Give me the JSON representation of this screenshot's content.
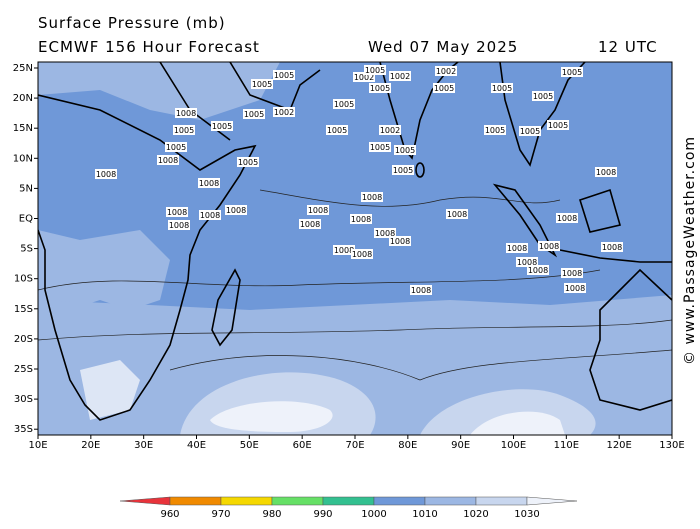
{
  "header": {
    "title": "Surface Pressure (mb)",
    "model": "ECMWF 156 Hour Forecast",
    "date": "Wed 07 May 2025",
    "time": "12 UTC"
  },
  "watermark": "© www.PassageWeather.com",
  "map": {
    "lat_ticks": [
      {
        "value": 25,
        "label": "25N"
      },
      {
        "value": 20,
        "label": "20N"
      },
      {
        "value": 15,
        "label": "15N"
      },
      {
        "value": 10,
        "label": "10N"
      },
      {
        "value": 5,
        "label": "5N"
      },
      {
        "value": 0,
        "label": "EQ"
      },
      {
        "value": -5,
        "label": "5S"
      },
      {
        "value": -10,
        "label": "10S"
      },
      {
        "value": -15,
        "label": "15S"
      },
      {
        "value": -20,
        "label": "20S"
      },
      {
        "value": -25,
        "label": "25S"
      },
      {
        "value": -30,
        "label": "30S"
      },
      {
        "value": -35,
        "label": "35S"
      }
    ],
    "lon_ticks": [
      {
        "value": 10,
        "label": "10E"
      },
      {
        "value": 20,
        "label": "20E"
      },
      {
        "value": 30,
        "label": "30E"
      },
      {
        "value": 40,
        "label": "40E"
      },
      {
        "value": 50,
        "label": "50E"
      },
      {
        "value": 60,
        "label": "60E"
      },
      {
        "value": 70,
        "label": "70E"
      },
      {
        "value": 80,
        "label": "80E"
      },
      {
        "value": 90,
        "label": "90E"
      },
      {
        "value": 100,
        "label": "100E"
      },
      {
        "value": 110,
        "label": "110E"
      },
      {
        "value": 120,
        "label": "120E"
      },
      {
        "value": 130,
        "label": "130E"
      }
    ],
    "isobar_labels": [
      "1005",
      "1005",
      "1002",
      "1005",
      "1005",
      "1008",
      "1005",
      "1005",
      "1005",
      "1005",
      "1005",
      "1008",
      "1008",
      "1008",
      "1002",
      "1005",
      "1005",
      "1002",
      "1005",
      "1005",
      "1005",
      "1008",
      "1008",
      "1008",
      "1008",
      "1008",
      "1008",
      "1008",
      "1008",
      "1008",
      "1008",
      "1008",
      "1008",
      "1008",
      "1008",
      "1005",
      "1005",
      "1005",
      "1005",
      "1005",
      "1005",
      "1008",
      "1008",
      "1008",
      "1008",
      "1008",
      "1008",
      "1008",
      "1008",
      "1008",
      "1002",
      "1005",
      "1002"
    ]
  },
  "colorbar": {
    "ticks": [
      960,
      970,
      980,
      990,
      1000,
      1010,
      1020,
      1030
    ],
    "colors": [
      "#e8333b",
      "#f08a00",
      "#f5d800",
      "#66e066",
      "#33c090",
      "#6f98d8",
      "#9cb7e3",
      "#c8d6ee",
      "#eef2fa"
    ]
  }
}
